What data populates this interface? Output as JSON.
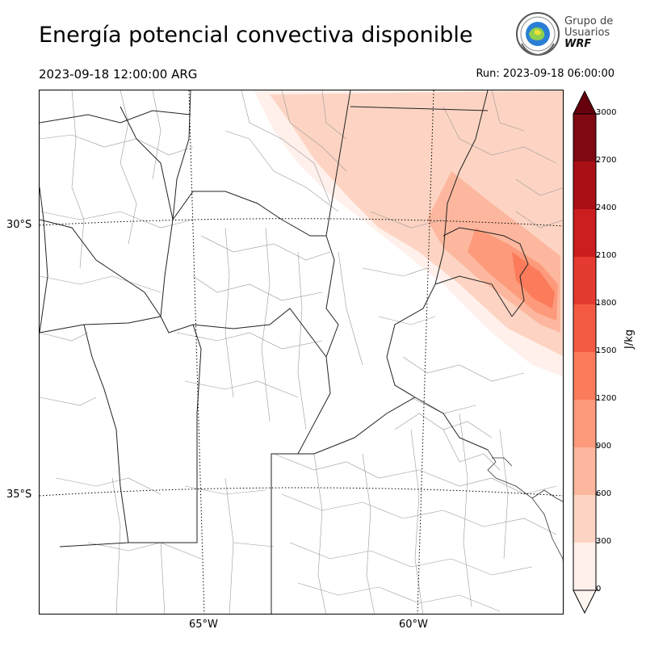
{
  "header": {
    "title": "Energía potencial convectiva disponible",
    "valid_time": "2023-09-18 12:00:00 ARG",
    "run_time": "Run: 2023-09-18 06:00:00"
  },
  "logo": {
    "line1": "Grupo de",
    "line2": "Usuarios",
    "line3": "WRF"
  },
  "map": {
    "lat_labels": [
      "30°S",
      "35°S"
    ],
    "lon_labels": [
      "65°W",
      "60°W"
    ]
  },
  "colorbar": {
    "unit": "J/kg",
    "ticks": [
      "0",
      "300",
      "600",
      "900",
      "1200",
      "1500",
      "1800",
      "2100",
      "2400",
      "2700",
      "3000"
    ],
    "levels": [
      0,
      300,
      600,
      900,
      1200,
      1500,
      1800,
      2100,
      2400,
      2700,
      3000
    ],
    "colors": [
      "#fff0eb",
      "#fdd4c3",
      "#fcb79e",
      "#fc9a7b",
      "#fb7b5b",
      "#f45a41",
      "#e43a2f",
      "#cc1d1f",
      "#a90f15",
      "#7f0812"
    ],
    "extend_low_color": "#fff5f0",
    "extend_high_color": "#67000d"
  }
}
